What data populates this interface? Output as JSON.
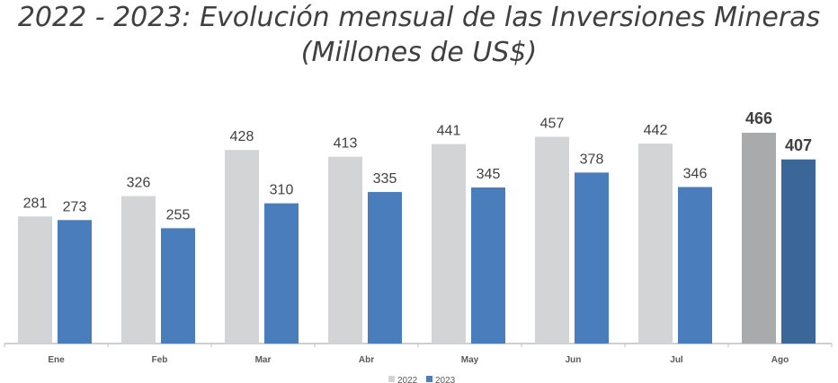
{
  "chart_data": {
    "type": "bar",
    "title": "2022 - 2023: Evolución mensual de las Inversiones Mineras",
    "subtitle": "(Millones de US$)",
    "categories": [
      "Ene",
      "Feb",
      "Mar",
      "Abr",
      "May",
      "Jun",
      "Jul",
      "Ago"
    ],
    "series": [
      {
        "name": "2022",
        "values": [
          281,
          326,
          428,
          413,
          441,
          457,
          442,
          466
        ],
        "color": "#d3d4d6",
        "highlight_color": "#a9aaac"
      },
      {
        "name": "2023",
        "values": [
          273,
          255,
          310,
          335,
          345,
          378,
          346,
          407
        ],
        "color": "#4a7dbb",
        "highlight_color": "#3a6698"
      }
    ],
    "highlighted_category": "Ago",
    "ylim": [
      0,
      475
    ],
    "grid": false,
    "legend": "bottom-center"
  }
}
